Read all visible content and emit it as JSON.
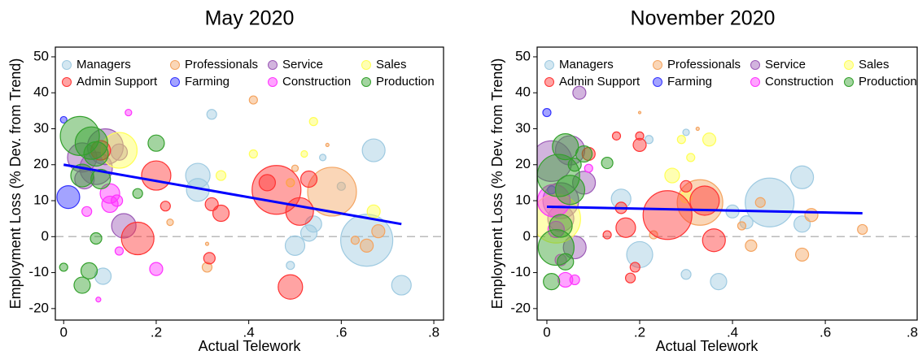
{
  "chart_data": [
    {
      "type": "scatter",
      "title": "May 2020",
      "x_label": "Actual Telework",
      "y_label": "Employment Loss (% Dev. from Trend)",
      "xlim": [
        -0.018,
        0.821
      ],
      "ylim": [
        -23.2,
        52.7
      ],
      "xticks": [
        0,
        {
          "value": 0.2,
          "label": ".2"
        },
        {
          "value": 0.4,
          "label": ".4"
        },
        {
          "value": 0.6,
          "label": ".6"
        },
        {
          "value": 0.8,
          "label": ".8"
        }
      ],
      "yticks": [
        -20,
        -10,
        0,
        10,
        20,
        30,
        40,
        50
      ],
      "hline": 0,
      "fit_line": {
        "color": "#0000ff",
        "x": [
          0,
          0.73
        ],
        "y": [
          20,
          3.5
        ]
      },
      "series": [
        {
          "name": "Managers",
          "color": "#9ecae1",
          "x": [
            0.67,
            0.655,
            0.73,
            0.29,
            0.29,
            0.32,
            0.56,
            0.53,
            0.49,
            0.5,
            0.54,
            0.085,
            0.6
          ],
          "values": [
            24,
            -1,
            -13.5,
            17,
            13,
            34,
            22,
            1,
            -8,
            -2.5,
            3.5,
            -11,
            14
          ],
          "sizes": [
            14,
            32,
            12,
            15,
            14,
            6,
            4,
            10,
            5,
            12,
            10,
            10,
            5
          ]
        },
        {
          "name": "Professionals",
          "color": "#f4a460",
          "x": [
            0.58,
            0.41,
            0.63,
            0.68,
            0.31,
            0.23,
            0.655,
            0.5,
            0.57,
            0.31
          ],
          "values": [
            12.5,
            38,
            -1,
            1.5,
            -8.5,
            4,
            -2.5,
            19,
            25.5,
            -2
          ],
          "sizes": [
            30,
            5,
            5,
            8,
            6,
            4,
            8,
            4,
            2,
            2
          ]
        },
        {
          "name": "Service",
          "color": "#9b59b6",
          "x": [
            0.09,
            0.13,
            0.12,
            0.07,
            0.045,
            0.04
          ],
          "values": [
            25,
            3,
            23.5,
            19,
            16,
            22
          ],
          "sizes": [
            22,
            15,
            10,
            20,
            12,
            18
          ]
        },
        {
          "name": "Sales",
          "color": "#ffff55",
          "x": [
            0.12,
            0.54,
            0.34,
            0.41,
            0.67,
            0.49,
            0.52
          ],
          "values": [
            24,
            32,
            17,
            23,
            7,
            15,
            23
          ],
          "sizes": [
            22,
            5,
            6,
            5,
            8,
            5,
            4
          ]
        },
        {
          "name": "Admin Support",
          "color": "#ff3333",
          "x": [
            0.46,
            0.2,
            0.16,
            0.51,
            0.53,
            0.49,
            0.32,
            0.34,
            0.315,
            0.22,
            0.44,
            0.08
          ],
          "values": [
            13,
            17,
            -0.5,
            7,
            16,
            -14,
            9,
            6.5,
            -6,
            8.5,
            15,
            24
          ],
          "sizes": [
            30,
            18,
            20,
            17,
            10,
            15,
            8,
            10,
            7,
            6,
            10,
            12
          ]
        },
        {
          "name": "Farming",
          "color": "#3333ff",
          "x": [
            0.01,
            0.0
          ],
          "values": [
            11,
            32.5
          ],
          "sizes": [
            14,
            4
          ]
        },
        {
          "name": "Construction",
          "color": "#ff33ff",
          "x": [
            0.1,
            0.2,
            0.14,
            0.05,
            0.075,
            0.12,
            0.115,
            0.1
          ],
          "values": [
            12,
            -9,
            34.5,
            7,
            -17.5,
            -4,
            10,
            9
          ],
          "sizes": [
            12,
            8,
            4,
            6,
            3,
            5,
            7,
            10
          ]
        },
        {
          "name": "Production",
          "color": "#33a02c",
          "x": [
            0.035,
            0.06,
            0.07,
            0.04,
            0.2,
            0.04,
            0.055,
            0.07,
            0.0,
            0.16,
            0.08
          ],
          "values": [
            28,
            26,
            23,
            17,
            26,
            -13.5,
            -9.5,
            -0.5,
            -8.5,
            12,
            16
          ],
          "sizes": [
            24,
            20,
            15,
            14,
            10,
            10,
            10,
            7,
            5,
            6,
            12
          ]
        }
      ]
    },
    {
      "type": "scatter",
      "title": "November 2020",
      "x_label": "Actual Telework",
      "y_label": "Employment Loss (% Dev. from Trend)",
      "xlim": [
        -0.021,
        0.798
      ],
      "ylim": [
        -23.2,
        52.7
      ],
      "xticks": [
        0,
        {
          "value": 0.2,
          "label": ".2"
        },
        {
          "value": 0.4,
          "label": ".4"
        },
        {
          "value": 0.6,
          "label": ".6"
        },
        {
          "value": 0.8,
          "label": ".8"
        }
      ],
      "yticks": [
        -20,
        -10,
        0,
        10,
        20,
        30,
        40,
        50
      ],
      "hline": 0,
      "fit_line": {
        "color": "#0000ff",
        "x": [
          0,
          0.68
        ],
        "y": [
          8.3,
          6.5
        ]
      },
      "series": [
        {
          "name": "Managers",
          "color": "#9ecae1",
          "x": [
            0.48,
            0.55,
            0.16,
            0.37,
            0.4,
            0.3,
            0.22,
            0.3,
            0.55,
            0.2,
            0.43
          ],
          "values": [
            9.5,
            16.5,
            10.5,
            -12.5,
            7,
            -10.5,
            27,
            29,
            3.5,
            -5,
            4
          ],
          "sizes": [
            30,
            14,
            12,
            10,
            8,
            6,
            5,
            4,
            10,
            16,
            8
          ]
        },
        {
          "name": "Professionals",
          "color": "#f4a460",
          "x": [
            0.33,
            0.55,
            0.57,
            0.68,
            0.44,
            0.42,
            0.46,
            0.325,
            0.2,
            0.23
          ],
          "values": [
            9.5,
            -5,
            6,
            2,
            -2.5,
            3,
            9.5,
            30,
            34.5,
            0.5
          ],
          "sizes": [
            28,
            8,
            8,
            6,
            7,
            5,
            6,
            2,
            1.5,
            5
          ]
        },
        {
          "name": "Service",
          "color": "#9b59b6",
          "x": [
            0.01,
            0.05,
            0.03,
            0.08,
            0.07,
            0.06,
            0.03
          ],
          "values": [
            21,
            24,
            10,
            15,
            40,
            -3,
            5
          ],
          "sizes": [
            25,
            18,
            22,
            14,
            8,
            14,
            16
          ]
        },
        {
          "name": "Sales",
          "color": "#ffff55",
          "x": [
            0.02,
            0.27,
            0.29,
            0.35,
            0.31,
            0.3
          ],
          "values": [
            5,
            17,
            27,
            27,
            22,
            11
          ],
          "sizes": [
            30,
            9,
            5,
            8,
            5,
            7
          ]
        },
        {
          "name": "Admin Support",
          "color": "#ff3333",
          "x": [
            0.26,
            0.34,
            0.36,
            0.17,
            0.2,
            0.2,
            0.19,
            0.15,
            0.09,
            0.13,
            0.18,
            0.16,
            0.3
          ],
          "values": [
            6,
            10,
            -1,
            2.5,
            25.5,
            28,
            -8.5,
            28,
            23,
            0.5,
            -11.5,
            8,
            14
          ],
          "sizes": [
            30,
            18,
            14,
            12,
            8,
            5,
            6,
            5,
            8,
            5,
            6,
            7,
            7
          ]
        },
        {
          "name": "Farming",
          "color": "#3333ff",
          "x": [
            0.0,
            0.01
          ],
          "values": [
            34.5,
            13
          ],
          "sizes": [
            5,
            5
          ]
        },
        {
          "name": "Construction",
          "color": "#ff33ff",
          "x": [
            0.015,
            0.04,
            0.06,
            0.09,
            0.03,
            0.02
          ],
          "values": [
            10,
            -12,
            -12,
            19,
            -6.5,
            2
          ],
          "sizes": [
            20,
            9,
            6,
            5,
            7,
            10
          ]
        },
        {
          "name": "Production",
          "color": "#33a02c",
          "x": [
            0.025,
            0.04,
            0.05,
            0.02,
            0.01,
            0.08,
            0.13,
            0.04,
            0.06,
            0.03
          ],
          "values": [
            17,
            25,
            13,
            -3,
            -12.5,
            23,
            20.5,
            -7,
            20,
            3
          ],
          "sizes": [
            26,
            16,
            18,
            22,
            10,
            10,
            7,
            10,
            8,
            14
          ]
        }
      ]
    }
  ]
}
